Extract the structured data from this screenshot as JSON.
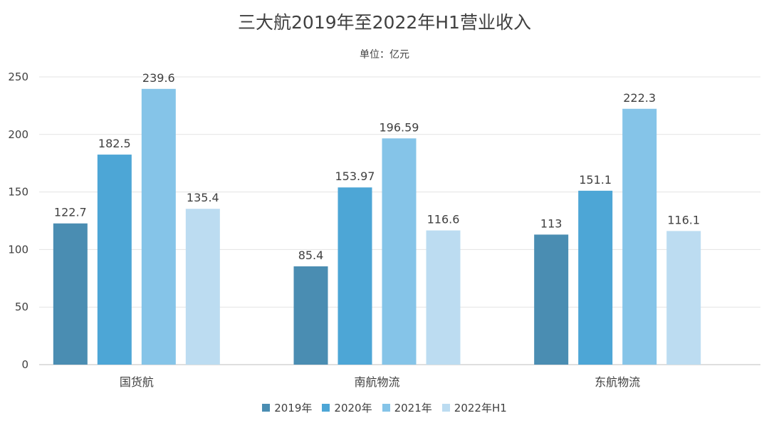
{
  "chart_data": {
    "type": "bar",
    "title": "三大航2019年至2022年H1营业收入",
    "subtitle": "单位：亿元",
    "categories": [
      "国货航",
      "南航物流",
      "东航物流"
    ],
    "series": [
      {
        "name": "2019年",
        "values": [
          122.7,
          85.4,
          113
        ],
        "labels": [
          "122.7",
          "85.4",
          "113"
        ],
        "color": "#4a8db2"
      },
      {
        "name": "2020年",
        "values": [
          182.5,
          153.97,
          151.1
        ],
        "labels": [
          "182.5",
          "153.97",
          "151.1"
        ],
        "color": "#4da6d6"
      },
      {
        "name": "2021年",
        "values": [
          239.6,
          196.59,
          222.3
        ],
        "labels": [
          "239.6",
          "196.59",
          "222.3"
        ],
        "color": "#85c4e8"
      },
      {
        "name": "2022年H1",
        "values": [
          135.4,
          116.6,
          116.1
        ],
        "labels": [
          "135.4",
          "116.6",
          "116.1"
        ],
        "color": "#bcdcf1"
      }
    ],
    "ylim": [
      0,
      250
    ],
    "yticks": [
      0,
      50,
      100,
      150,
      200,
      250
    ],
    "grid": true,
    "legend_position": "bottom"
  }
}
